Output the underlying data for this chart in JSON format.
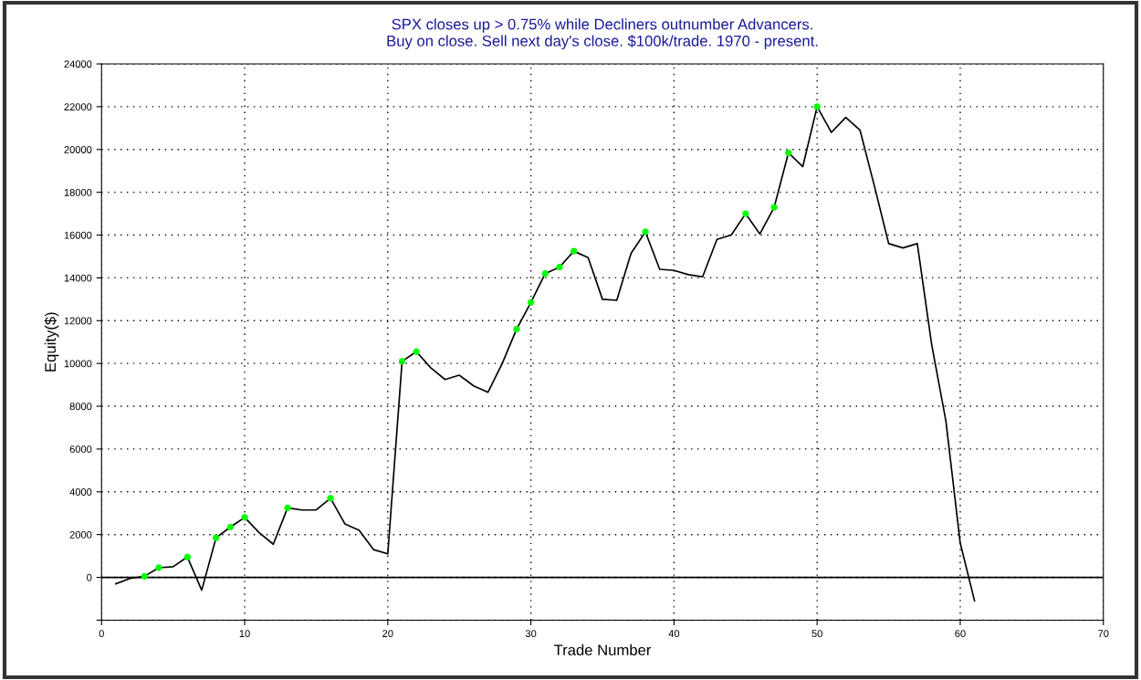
{
  "chart_data": {
    "type": "line",
    "title": "SPX closes up > 0.75% while Decliners outnumber Advancers.\nBuy on close. Sell next day's close. $100k/trade. 1970 - present.",
    "xlabel": "Trade Number",
    "ylabel": "Equity($)",
    "series": [
      {
        "color": "#000000",
        "marker": "none",
        "x": [
          1,
          2,
          3,
          4,
          5,
          6,
          7,
          8,
          9,
          10,
          11,
          12,
          13,
          14,
          15,
          16,
          17,
          18,
          19,
          20,
          21,
          22,
          23,
          24,
          25,
          26,
          27,
          28,
          29,
          30,
          31,
          32,
          33,
          34,
          35,
          36,
          37,
          38,
          39,
          40,
          41,
          42,
          43,
          44,
          45,
          46,
          47,
          48,
          49,
          50,
          51,
          52,
          53,
          54,
          55,
          56,
          57,
          58,
          59,
          60,
          61
        ],
        "values": [
          -300,
          -50,
          50,
          450,
          500,
          950,
          -600,
          1850,
          2350,
          2800,
          2100,
          1550,
          3250,
          3150,
          3150,
          3700,
          2500,
          2200,
          1300,
          1100,
          10100,
          10550,
          9800,
          9250,
          9450,
          8950,
          8650,
          10000,
          11600,
          12850,
          14200,
          14500,
          15250,
          14950,
          13000,
          12950,
          15150,
          16150,
          14400,
          14350,
          14150,
          14050,
          15800,
          16000,
          17000,
          16050,
          17300,
          19850,
          19200,
          22000,
          20800,
          21500,
          20900,
          18300,
          15600,
          15400,
          15600,
          10900,
          7300,
          1600,
          -1100
        ]
      },
      {
        "type": "scatter",
        "color": "#00ff00",
        "marker": "circle",
        "x": [
          3,
          4,
          6,
          8,
          9,
          10,
          13,
          16,
          21,
          22,
          29,
          30,
          31,
          32,
          33,
          38,
          45,
          47,
          48,
          50
        ],
        "values": [
          50,
          450,
          950,
          1850,
          2350,
          2800,
          3250,
          3700,
          10100,
          10550,
          11600,
          12850,
          14200,
          14500,
          15250,
          16150,
          17000,
          17300,
          19850,
          22000
        ]
      }
    ],
    "xlim": [
      0,
      70
    ],
    "xticks": [
      0,
      10,
      20,
      30,
      40,
      50,
      60,
      70
    ],
    "ylim": [
      -2000,
      24000
    ],
    "yticks": [
      {
        "value": -2000,
        "label": null
      },
      0,
      2000,
      4000,
      6000,
      8000,
      10000,
      12000,
      14000,
      16000,
      18000,
      20000,
      22000,
      24000
    ],
    "grid": true,
    "ref_lines": [
      {
        "axis": "y",
        "value": 0,
        "color": "#000000",
        "line_style": "solid"
      }
    ]
  }
}
